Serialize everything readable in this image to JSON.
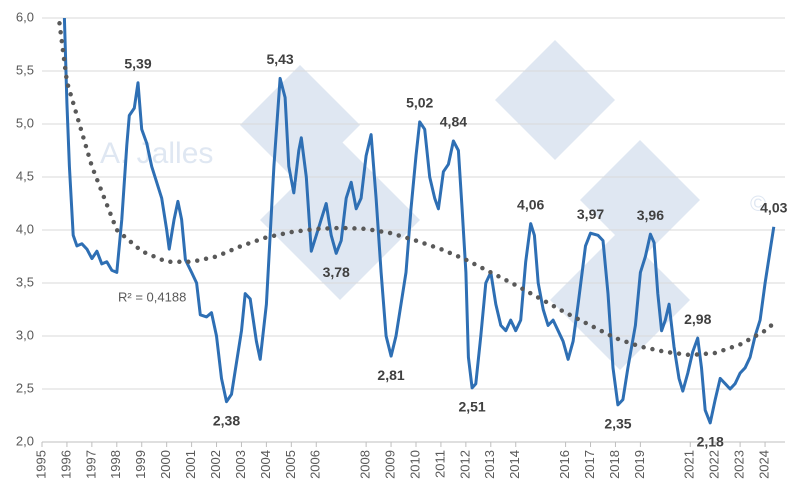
{
  "chart_data": {
    "type": "line",
    "watermark": "A. Jalles",
    "annotation": "R² = 0,4188",
    "xlim": [
      1995,
      2024.8
    ],
    "xticks": [
      1995,
      1996,
      1997,
      1998,
      1999,
      2000,
      2001,
      2002,
      2003,
      2004,
      2005,
      2006,
      2008,
      2009,
      2010,
      2011,
      2012,
      2013,
      2014,
      2016,
      2017,
      2018,
      2019,
      2021,
      2022,
      2023,
      2024
    ],
    "ylim": [
      2,
      6
    ],
    "yticks": [
      {
        "value": 2,
        "label": "2,0"
      },
      {
        "value": 2.5,
        "label": "2,5"
      },
      {
        "value": 3,
        "label": "3,0"
      },
      {
        "value": 3.5,
        "label": "3,5"
      },
      {
        "value": 4,
        "label": "4,0"
      },
      {
        "value": 4.5,
        "label": "4,5"
      },
      {
        "value": 5,
        "label": "5,0"
      },
      {
        "value": 5.5,
        "label": "5,5"
      },
      {
        "value": 6,
        "label": "6,0"
      }
    ],
    "grid": true,
    "series": [
      {
        "color": "#2e6fb4",
        "style": "solid",
        "x": [
          1995.9,
          1996.0,
          1996.1,
          1996.25,
          1996.4,
          1996.6,
          1996.8,
          1997.0,
          1997.2,
          1997.4,
          1997.6,
          1997.8,
          1998.0,
          1998.2,
          1998.4,
          1998.5,
          1998.7,
          1998.85,
          1999.0,
          1999.2,
          1999.4,
          1999.6,
          1999.8,
          2000.0,
          2000.1,
          2000.3,
          2000.45,
          2000.6,
          2000.75,
          2001.0,
          2001.2,
          2001.35,
          2001.6,
          2001.8,
          2002.0,
          2002.2,
          2002.4,
          2002.6,
          2002.8,
          2003.0,
          2003.15,
          2003.35,
          2003.6,
          2003.75,
          2004.0,
          2004.3,
          2004.55,
          2004.75,
          2004.9,
          2005.1,
          2005.3,
          2005.4,
          2005.6,
          2005.8,
          2006.0,
          2006.2,
          2006.4,
          2006.6,
          2006.8,
          2007.0,
          2007.2,
          2007.4,
          2007.6,
          2007.8,
          2008.0,
          2008.2,
          2008.4,
          2008.6,
          2008.8,
          2009.0,
          2009.2,
          2009.4,
          2009.6,
          2009.8,
          2010.0,
          2010.15,
          2010.35,
          2010.55,
          2010.75,
          2010.9,
          2011.1,
          2011.3,
          2011.5,
          2011.7,
          2011.85,
          2012.0,
          2012.1,
          2012.25,
          2012.4,
          2012.6,
          2012.8,
          2013.0,
          2013.2,
          2013.4,
          2013.6,
          2013.8,
          2014.0,
          2014.2,
          2014.4,
          2014.6,
          2014.75,
          2014.9,
          2015.1,
          2015.3,
          2015.5,
          2015.7,
          2015.9,
          2016.1,
          2016.3,
          2016.5,
          2016.8,
          2017.0,
          2017.3,
          2017.5,
          2017.7,
          2017.9,
          2018.1,
          2018.3,
          2018.5,
          2018.8,
          2019.0,
          2019.2,
          2019.4,
          2019.55,
          2019.7,
          2019.85,
          2020.0,
          2020.15,
          2020.35,
          2020.55,
          2020.7,
          2020.9,
          2021.1,
          2021.3,
          2021.45,
          2021.6,
          2021.8,
          2022.0,
          2022.2,
          2022.4,
          2022.6,
          2022.8,
          2023.0,
          2023.2,
          2023.4,
          2023.6,
          2023.8,
          2024.0,
          2024.2,
          2024.35
        ],
        "values": [
          6.0,
          5.2,
          4.6,
          3.95,
          3.85,
          3.87,
          3.82,
          3.73,
          3.8,
          3.68,
          3.7,
          3.62,
          3.6,
          4.1,
          4.8,
          5.08,
          5.15,
          5.39,
          4.95,
          4.82,
          4.6,
          4.45,
          4.3,
          4.0,
          3.82,
          4.1,
          4.27,
          4.1,
          3.72,
          3.6,
          3.5,
          3.2,
          3.18,
          3.22,
          3.0,
          2.6,
          2.38,
          2.45,
          2.75,
          3.05,
          3.4,
          3.35,
          2.95,
          2.78,
          3.3,
          4.6,
          5.43,
          5.25,
          4.6,
          4.35,
          4.75,
          4.87,
          4.5,
          3.8,
          3.95,
          4.1,
          4.25,
          3.95,
          3.78,
          3.9,
          4.3,
          4.45,
          4.2,
          4.3,
          4.7,
          4.9,
          4.3,
          3.6,
          3.0,
          2.81,
          3.0,
          3.3,
          3.6,
          4.2,
          4.7,
          5.02,
          4.95,
          4.5,
          4.3,
          4.2,
          4.55,
          4.62,
          4.84,
          4.75,
          4.2,
          3.6,
          2.8,
          2.51,
          2.55,
          3.0,
          3.5,
          3.6,
          3.3,
          3.1,
          3.05,
          3.15,
          3.05,
          3.15,
          3.7,
          4.06,
          3.95,
          3.5,
          3.25,
          3.1,
          3.15,
          3.05,
          2.95,
          2.78,
          2.95,
          3.3,
          3.85,
          3.97,
          3.95,
          3.9,
          3.4,
          2.7,
          2.35,
          2.4,
          2.7,
          3.1,
          3.6,
          3.75,
          3.96,
          3.88,
          3.4,
          3.05,
          3.15,
          3.3,
          2.9,
          2.6,
          2.48,
          2.65,
          2.85,
          2.98,
          2.7,
          2.3,
          2.18,
          2.4,
          2.6,
          2.55,
          2.5,
          2.55,
          2.65,
          2.7,
          2.8,
          3.0,
          3.15,
          3.5,
          3.8,
          4.03
        ],
        "value_labels": [
          null,
          null,
          null,
          null,
          null,
          null,
          null,
          null,
          null,
          null,
          null,
          null,
          null,
          null,
          null,
          null,
          null,
          "5,39",
          null,
          null,
          null,
          null,
          null,
          null,
          null,
          null,
          null,
          null,
          null,
          null,
          null,
          null,
          null,
          null,
          null,
          null,
          "2,38",
          null,
          null,
          null,
          null,
          null,
          null,
          null,
          null,
          null,
          "5,43",
          null,
          null,
          null,
          null,
          null,
          null,
          null,
          null,
          null,
          null,
          null,
          "3,78",
          null,
          null,
          null,
          null,
          null,
          null,
          null,
          null,
          null,
          null,
          "2,81",
          null,
          null,
          null,
          null,
          null,
          "5,02",
          null,
          null,
          null,
          null,
          null,
          null,
          "4,84",
          null,
          null,
          null,
          null,
          "2,51",
          null,
          null,
          null,
          null,
          null,
          null,
          null,
          null,
          null,
          null,
          null,
          "4,06",
          null,
          null,
          null,
          null,
          null,
          null,
          null,
          null,
          null,
          null,
          null,
          "3,97",
          null,
          null,
          null,
          null,
          "2,35",
          null,
          null,
          null,
          null,
          null,
          "3,96",
          null,
          null,
          null,
          null,
          null,
          null,
          null,
          null,
          null,
          null,
          "2,98",
          null,
          null,
          "2,18",
          null,
          null,
          null,
          null,
          null,
          null,
          null,
          null,
          null,
          null,
          null,
          null,
          "4,03"
        ]
      },
      {
        "color": "#595959",
        "style": "dotted",
        "x": [
          1995.7,
          1996.0,
          1997,
          1998,
          1999,
          2000,
          2001,
          2002,
          2003,
          2004,
          2005,
          2006,
          2007,
          2008,
          2009,
          2010,
          2011,
          2012,
          2013,
          2014,
          2015,
          2016,
          2017,
          2018,
          2019,
          2020,
          2021,
          2022,
          2023,
          2024,
          2024.5
        ],
        "values": [
          5.95,
          5.4,
          4.6,
          4.0,
          3.8,
          3.7,
          3.7,
          3.75,
          3.85,
          3.93,
          3.98,
          4.01,
          4.02,
          4.01,
          3.97,
          3.9,
          3.82,
          3.72,
          3.6,
          3.48,
          3.35,
          3.22,
          3.1,
          2.98,
          2.9,
          2.85,
          2.82,
          2.84,
          2.92,
          3.05,
          3.15
        ]
      }
    ]
  }
}
